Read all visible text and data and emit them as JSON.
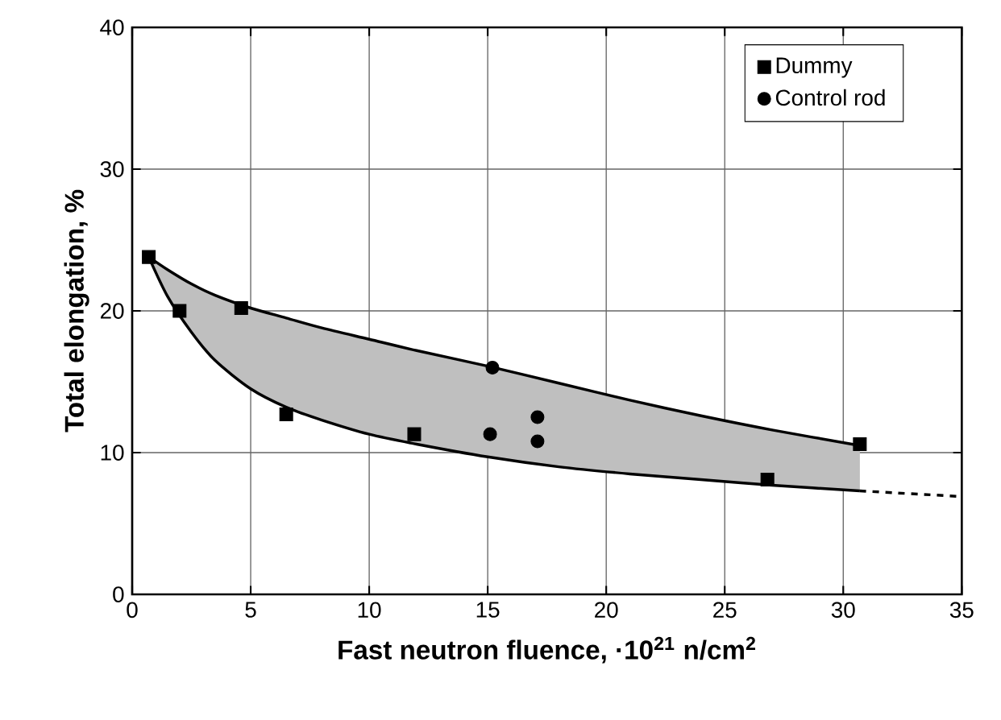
{
  "chart_data": {
    "type": "scatter",
    "xlabel": "Fast neutron fluence, ·10$^{21}$ n/cm$^{2}$",
    "ylabel": "Total elongation, %",
    "xlim": [
      0,
      35
    ],
    "ylim": [
      0,
      40
    ],
    "xticks": [
      0,
      5,
      10,
      15,
      20,
      25,
      30,
      35
    ],
    "yticks": [
      0,
      10,
      20,
      30,
      40
    ],
    "grid": true,
    "legend": "top right",
    "series": [
      {
        "type": "line",
        "color": "#000000",
        "x": [
          0.7,
          1.5,
          2.5,
          3.5,
          5,
          6.5,
          8,
          10,
          12,
          15,
          18,
          21,
          24,
          27,
          30.7
        ],
        "values": [
          23.8,
          22.9,
          21.9,
          21.1,
          20.2,
          19.5,
          18.8,
          18.0,
          17.2,
          16.1,
          14.9,
          13.7,
          12.6,
          11.6,
          10.5
        ],
        "lower": [
          23.8,
          21.0,
          18.5,
          16.5,
          14.5,
          13.2,
          12.3,
          11.3,
          10.6,
          9.7,
          9.0,
          8.5,
          8.1,
          7.7,
          7.3
        ],
        "upper": [
          23.8,
          22.9,
          21.9,
          21.1,
          20.2,
          19.5,
          18.8,
          18.0,
          17.2,
          16.1,
          14.9,
          13.7,
          12.6,
          11.6,
          10.5
        ]
      },
      {
        "type": "line",
        "color": "#000000",
        "x": [
          0.7,
          1.5,
          2.5,
          3.5,
          5,
          6.5,
          8,
          10,
          12,
          15,
          18,
          21,
          24,
          27,
          30.7
        ],
        "values": [
          23.8,
          21.0,
          18.5,
          16.5,
          14.5,
          13.2,
          12.3,
          11.3,
          10.6,
          9.7,
          9.0,
          8.5,
          8.1,
          7.7,
          7.3
        ]
      },
      {
        "type": "line",
        "color": "#000000",
        "line_style": "dashed",
        "x": [
          30.7,
          35
        ],
        "values": [
          7.3,
          6.9
        ]
      },
      {
        "name": "Dummy",
        "color": "#000000",
        "marker": "square",
        "x": [
          0.7,
          2,
          4.6,
          6.5,
          11.9,
          26.8,
          30.7
        ],
        "values": [
          23.8,
          20.0,
          20.2,
          12.7,
          11.3,
          8.1,
          10.6
        ]
      },
      {
        "name": "Control rod",
        "color": "#000000",
        "marker": "circle",
        "x": [
          15.2,
          15.1,
          17.1,
          17.1
        ],
        "values": [
          16.0,
          11.3,
          12.5,
          10.8
        ]
      }
    ]
  }
}
